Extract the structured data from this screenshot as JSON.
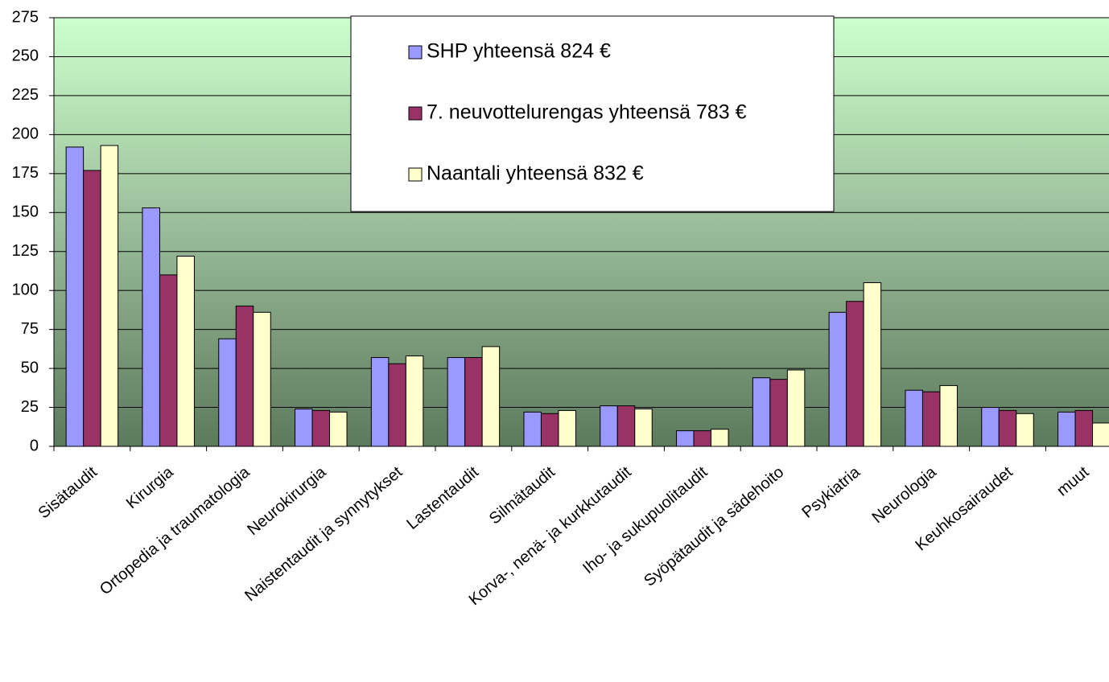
{
  "chart_data": {
    "type": "bar",
    "categories": [
      "Sisätaudit",
      "Kirurgia",
      "Ortopedia ja traumatologia",
      "Neurokirurgia",
      "Naistentaudit ja synnytykset",
      "Lastentaudit",
      "Silmätaudit",
      "Korva-, nenä- ja kurkkutaudit",
      "Iho- ja sukupuolitaudit",
      "Syöpätaudit ja sädehoito",
      "Psykiatria",
      "Neurologia",
      "Keuhkosairaudet",
      "muut"
    ],
    "series": [
      {
        "name": "SHP yhteensä 824 €",
        "color": "#9999ff",
        "values": [
          192,
          153,
          69,
          24,
          57,
          57,
          22,
          26,
          10,
          44,
          86,
          36,
          25,
          22
        ]
      },
      {
        "name": "7. neuvottelurengas yhteensä 783 €",
        "color": "#993366",
        "values": [
          177,
          110,
          90,
          23,
          53,
          57,
          21,
          26,
          10,
          43,
          93,
          35,
          23,
          23
        ]
      },
      {
        "name": "Naantali yhteensä 832 €",
        "color": "#ffffcc",
        "values": [
          193,
          122,
          86,
          22,
          58,
          64,
          23,
          24,
          11,
          49,
          105,
          39,
          21,
          15
        ]
      }
    ],
    "ylim": [
      0,
      275
    ],
    "yticks": [
      0,
      25,
      50,
      75,
      100,
      125,
      150,
      175,
      200,
      225,
      250,
      275
    ],
    "grid": true
  }
}
